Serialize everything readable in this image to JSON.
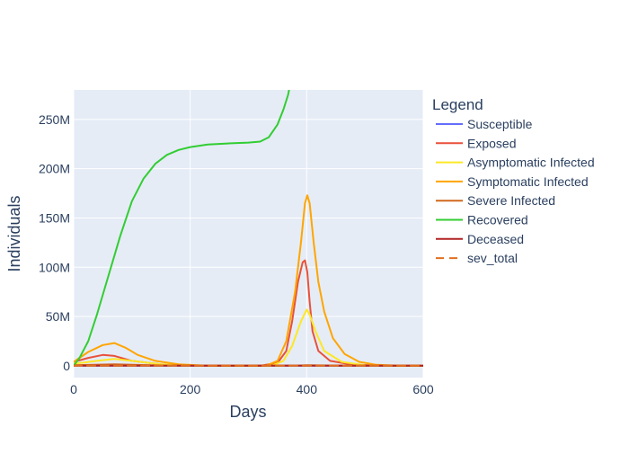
{
  "chart_data": {
    "type": "line",
    "xlabel": "Days",
    "ylabel": "Individuals",
    "xlim": [
      0,
      600
    ],
    "ylim": [
      -12000000,
      280000000
    ],
    "x_ticks": [
      0,
      200,
      400,
      600
    ],
    "x_tick_labels": [
      "0",
      "200",
      "400",
      "600"
    ],
    "y_ticks": [
      0,
      50000000,
      100000000,
      150000000,
      200000000,
      250000000
    ],
    "y_tick_labels": [
      "0",
      "50M",
      "100M",
      "150M",
      "200M",
      "250M"
    ],
    "grid": true,
    "plot_background": "#e5ecf6",
    "legend_title": "Legend",
    "legend_position": "right",
    "series": [
      {
        "name": "Susceptible",
        "color": "#636efa",
        "dash": "solid",
        "points": [
          [
            0,
            0
          ],
          [
            600,
            0
          ]
        ]
      },
      {
        "name": "Exposed",
        "color": "#e8513a",
        "dash": "solid",
        "points": [
          [
            0,
            4000000
          ],
          [
            25,
            8000000
          ],
          [
            50,
            11000000
          ],
          [
            70,
            10000000
          ],
          [
            100,
            5000000
          ],
          [
            150,
            1500000
          ],
          [
            200,
            300000
          ],
          [
            250,
            0
          ],
          [
            320,
            0
          ],
          [
            350,
            3000000
          ],
          [
            365,
            15000000
          ],
          [
            375,
            45000000
          ],
          [
            385,
            85000000
          ],
          [
            393,
            105000000
          ],
          [
            397,
            107000000
          ],
          [
            401,
            95000000
          ],
          [
            405,
            65000000
          ],
          [
            410,
            35000000
          ],
          [
            420,
            15000000
          ],
          [
            440,
            5000000
          ],
          [
            480,
            1000000
          ],
          [
            550,
            0
          ],
          [
            600,
            0
          ]
        ]
      },
      {
        "name": "Asymptomatic Infected",
        "color": "#fde725",
        "dash": "solid",
        "points": [
          [
            0,
            2000000
          ],
          [
            40,
            5000000
          ],
          [
            70,
            7000000
          ],
          [
            100,
            5000000
          ],
          [
            150,
            1500000
          ],
          [
            200,
            300000
          ],
          [
            250,
            0
          ],
          [
            340,
            0
          ],
          [
            360,
            5000000
          ],
          [
            375,
            20000000
          ],
          [
            390,
            45000000
          ],
          [
            400,
            57000000
          ],
          [
            405,
            52000000
          ],
          [
            415,
            35000000
          ],
          [
            430,
            15000000
          ],
          [
            460,
            4000000
          ],
          [
            500,
            500000
          ],
          [
            550,
            0
          ],
          [
            600,
            0
          ]
        ]
      },
      {
        "name": "Symptomatic Infected",
        "color": "#ffa500",
        "dash": "solid",
        "points": [
          [
            0,
            4000000
          ],
          [
            25,
            14000000
          ],
          [
            50,
            21000000
          ],
          [
            70,
            23000000
          ],
          [
            90,
            18000000
          ],
          [
            110,
            11000000
          ],
          [
            140,
            5000000
          ],
          [
            180,
            1500000
          ],
          [
            220,
            300000
          ],
          [
            260,
            0
          ],
          [
            330,
            0
          ],
          [
            350,
            5000000
          ],
          [
            365,
            25000000
          ],
          [
            380,
            75000000
          ],
          [
            390,
            125000000
          ],
          [
            397,
            165000000
          ],
          [
            401,
            173000000
          ],
          [
            405,
            165000000
          ],
          [
            412,
            125000000
          ],
          [
            420,
            85000000
          ],
          [
            430,
            55000000
          ],
          [
            445,
            28000000
          ],
          [
            465,
            12000000
          ],
          [
            490,
            4000000
          ],
          [
            520,
            1000000
          ],
          [
            560,
            0
          ],
          [
            600,
            0
          ]
        ]
      },
      {
        "name": "Severe Infected",
        "color": "#d2691e",
        "dash": "solid",
        "points": [
          [
            0,
            500000
          ],
          [
            70,
            1500000
          ],
          [
            150,
            300000
          ],
          [
            250,
            0
          ],
          [
            390,
            300000
          ],
          [
            400,
            500000
          ],
          [
            450,
            200000
          ],
          [
            600,
            0
          ]
        ]
      },
      {
        "name": "Recovered",
        "color": "#32cd32",
        "dash": "solid",
        "points": [
          [
            0,
            0
          ],
          [
            10,
            8000000
          ],
          [
            25,
            25000000
          ],
          [
            40,
            52000000
          ],
          [
            60,
            92000000
          ],
          [
            80,
            132000000
          ],
          [
            100,
            167000000
          ],
          [
            120,
            190000000
          ],
          [
            140,
            205000000
          ],
          [
            160,
            214000000
          ],
          [
            180,
            219000000
          ],
          [
            200,
            222000000
          ],
          [
            230,
            224500000
          ],
          [
            260,
            225500000
          ],
          [
            300,
            226500000
          ],
          [
            320,
            227500000
          ],
          [
            335,
            232000000
          ],
          [
            350,
            245000000
          ],
          [
            360,
            260000000
          ],
          [
            368,
            275000000
          ],
          [
            372,
            287000000
          ],
          [
            380,
            320000000
          ]
        ]
      },
      {
        "name": "Deceased",
        "color": "#b22222",
        "dash": "solid",
        "points": [
          [
            0,
            0
          ],
          [
            600,
            0
          ]
        ]
      },
      {
        "name": "sev_total",
        "color": "#e0701f",
        "dash": "dash",
        "points": [
          [
            0,
            0
          ],
          [
            600,
            0
          ]
        ]
      }
    ]
  }
}
